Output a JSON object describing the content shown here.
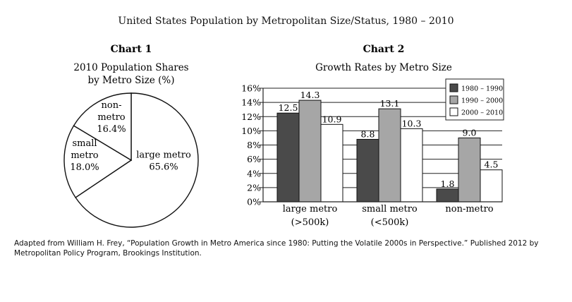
{
  "title": "United States Population by Metropolitan Size/Status, 1980 – 2010",
  "source_note": "Adapted from William H. Frey, “Population Growth in Metro America since 1980: Putting the Volatile 2000s in Perspective.” Published 2012 by Metropolitan Policy Program, Brookings Institution.",
  "chart_data": [
    {
      "type": "pie",
      "heading": "Chart 1",
      "title": "2010 Population Shares by Metro Size (%)",
      "title_lines": [
        "2010 Population Shares",
        "by Metro Size (%)"
      ],
      "slices": [
        {
          "name": "large metro",
          "value": 65.6,
          "label_lines": [
            "large metro",
            "65.6%"
          ]
        },
        {
          "name": "small metro",
          "value": 18.0,
          "label_lines": [
            "small",
            "metro",
            "18.0%"
          ]
        },
        {
          "name": "non-metro",
          "value": 16.4,
          "label_lines": [
            "non-",
            "metro",
            "16.4%"
          ]
        }
      ],
      "colors": {
        "fill": "#ffffff",
        "stroke": "#111111"
      }
    },
    {
      "type": "bar",
      "heading": "Chart 2",
      "title": "Growth Rates by Metro Size",
      "categories": [
        "large metro (>500k)",
        "small metro (<500k)",
        "non-metro"
      ],
      "category_label_lines": [
        [
          "large metro",
          "(>500k)"
        ],
        [
          "small metro",
          "(<500k)"
        ],
        [
          "non-metro"
        ]
      ],
      "series": [
        {
          "name": "1980 – 1990",
          "values": [
            12.5,
            8.8,
            1.8
          ],
          "color": "#4a4a4a"
        },
        {
          "name": "1990 – 2000",
          "values": [
            14.3,
            13.1,
            9.0
          ],
          "color": "#a6a6a6"
        },
        {
          "name": "2000 – 2010",
          "values": [
            10.9,
            10.3,
            4.5
          ],
          "color": "#ffffff"
        }
      ],
      "data_labels": [
        [
          "12.5",
          "8.8",
          "1.8"
        ],
        [
          "14.3",
          "13.1",
          "9.0"
        ],
        [
          "10.9",
          "10.3",
          "4.5"
        ]
      ],
      "ylim": [
        0,
        16
      ],
      "yticks": [
        0,
        2,
        4,
        6,
        8,
        10,
        12,
        14,
        16
      ],
      "ytick_labels": [
        "0%",
        "2%",
        "4%",
        "6%",
        "8%",
        "10%",
        "12%",
        "14%",
        "16%"
      ],
      "grid": true,
      "legend_position": "top-right",
      "xlabel": "",
      "ylabel": ""
    }
  ]
}
